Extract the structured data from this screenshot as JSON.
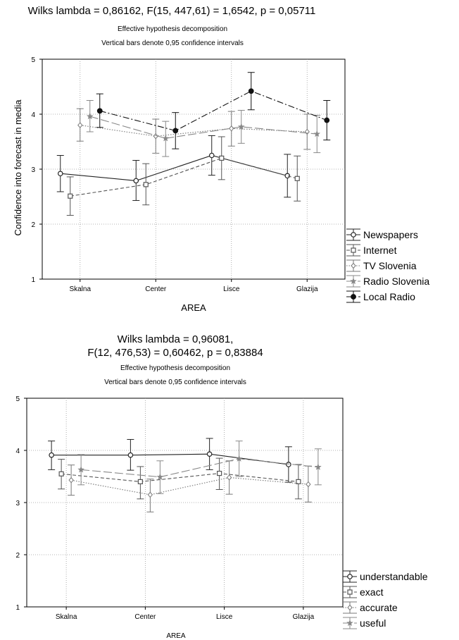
{
  "chart_data": [
    {
      "type": "line",
      "title_lines": [
        "Wilks lambda = 0,86162, F(15, 447,61) = 1,6542, p = 0,05711"
      ],
      "subtitle_lines": [
        "Effective hypothesis decomposition",
        "Vertical bars denote 0,95 confidence intervals"
      ],
      "xlabel": "AREA",
      "ylabel": "Confidence into forecast in media",
      "categories": [
        "Skalna",
        "Center",
        "Lisce",
        "Glazija"
      ],
      "ylim": [
        1,
        5
      ],
      "yticks": [
        "1",
        "2",
        "3",
        "4",
        "5"
      ],
      "grid": true,
      "legend_position": "right",
      "series": [
        {
          "name": "Newspapers",
          "marker": "open-circle",
          "dash": "solid",
          "color": "#222222",
          "values": [
            2.92,
            2.79,
            3.25,
            2.88
          ],
          "ci_low": [
            2.59,
            2.43,
            2.89,
            2.49
          ],
          "ci_high": [
            3.25,
            3.16,
            3.61,
            3.27
          ]
        },
        {
          "name": "Internet",
          "marker": "open-square",
          "dash": "dashed",
          "color": "#555555",
          "values": [
            2.51,
            2.72,
            3.2,
            2.83
          ],
          "ci_low": [
            2.16,
            2.35,
            2.81,
            2.42
          ],
          "ci_high": [
            2.86,
            3.1,
            3.59,
            3.24
          ]
        },
        {
          "name": "TV Slovenia",
          "marker": "open-diamond",
          "dash": "dotted",
          "color": "#777777",
          "values": [
            3.8,
            3.6,
            3.74,
            3.68
          ],
          "ci_low": [
            3.51,
            3.29,
            3.42,
            3.36
          ],
          "ci_high": [
            4.1,
            3.91,
            4.05,
            4.0
          ]
        },
        {
          "name": "Radio Slovenia",
          "marker": "star",
          "dash": "longdash",
          "color": "#888888",
          "values": [
            3.96,
            3.56,
            3.77,
            3.64
          ],
          "ci_low": [
            3.68,
            3.23,
            3.47,
            3.3
          ],
          "ci_high": [
            4.25,
            3.87,
            4.07,
            3.98
          ]
        },
        {
          "name": "Local Radio",
          "marker": "filled-circle",
          "dash": "dashdot",
          "color": "#111111",
          "values": [
            4.06,
            3.7,
            4.42,
            3.89
          ],
          "ci_low": [
            3.76,
            3.37,
            4.08,
            3.53
          ],
          "ci_high": [
            4.37,
            4.03,
            4.76,
            4.25
          ]
        }
      ]
    },
    {
      "type": "line",
      "title_lines": [
        "Wilks lambda = 0,96081,",
        "F(12, 476,53) = 0,60462, p = 0,83884"
      ],
      "subtitle_lines": [
        "Effective hypothesis decomposition",
        "Vertical bars denote 0,95 confidence intervals"
      ],
      "xlabel": "AREA",
      "ylabel": "",
      "categories": [
        "Skalna",
        "Center",
        "Lisce",
        "Glazija"
      ],
      "ylim": [
        1,
        5
      ],
      "yticks": [
        "1",
        "2",
        "3",
        "4",
        "5"
      ],
      "grid": true,
      "legend_position": "right",
      "series": [
        {
          "name": "understandable",
          "marker": "open-circle",
          "dash": "solid",
          "color": "#222222",
          "values": [
            3.91,
            3.91,
            3.93,
            3.73
          ],
          "ci_low": [
            3.63,
            3.62,
            3.63,
            3.39
          ],
          "ci_high": [
            4.18,
            4.21,
            4.23,
            4.07
          ]
        },
        {
          "name": "exact",
          "marker": "open-square",
          "dash": "dashed",
          "color": "#555555",
          "values": [
            3.55,
            3.4,
            3.56,
            3.4
          ],
          "ci_low": [
            3.26,
            3.07,
            3.25,
            3.07
          ],
          "ci_high": [
            3.83,
            3.69,
            3.85,
            3.73
          ]
        },
        {
          "name": "accurate",
          "marker": "open-diamond",
          "dash": "dotted",
          "color": "#777777",
          "values": [
            3.43,
            3.15,
            3.48,
            3.35
          ],
          "ci_low": [
            3.14,
            2.82,
            3.16,
            3.01
          ],
          "ci_high": [
            3.72,
            3.45,
            3.8,
            3.7
          ]
        },
        {
          "name": "useful",
          "marker": "star",
          "dash": "longdash",
          "color": "#888888",
          "values": [
            3.63,
            3.49,
            3.84,
            3.68
          ],
          "ci_low": [
            3.34,
            3.17,
            3.5,
            3.34
          ],
          "ci_high": [
            3.92,
            3.8,
            4.18,
            4.03
          ]
        }
      ]
    }
  ]
}
